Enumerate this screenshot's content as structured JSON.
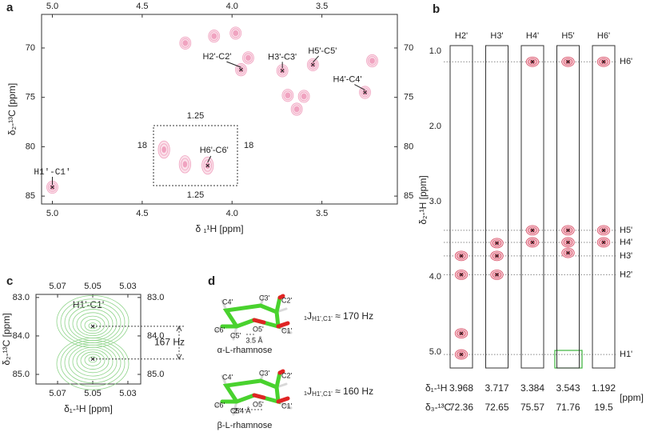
{
  "chart_data": [
    {
      "type": "contour",
      "panel": "a",
      "xlabel": "δ ₁¹H [ppm]",
      "ylabel": "δ₂-¹³C [ppm]",
      "color": "#f0a3c0",
      "xlim": [
        5.06,
        3.08
      ],
      "ylim": [
        66.6,
        85.8
      ],
      "xticks": [
        {
          "value": 5,
          "label": "5.0"
        },
        4.5,
        {
          "value": 4,
          "label": "4.0"
        },
        3.5
      ],
      "yticks": [
        70,
        75,
        80,
        85
      ],
      "peaks": [
        {
          "label": "H1'-C1'",
          "x": 5.0,
          "y": 84.1
        },
        {
          "label": "H2'-C2'",
          "x": 3.95,
          "y": 72.2
        },
        {
          "label": "H3'-C3'",
          "x": 3.72,
          "y": 72.3
        },
        {
          "label": "H5'-C5'",
          "x": 3.55,
          "y": 71.7
        },
        {
          "label": "H4'-C4'",
          "x": 3.26,
          "y": 74.5
        },
        {
          "x": 4.26,
          "y": 69.5
        },
        {
          "x": 4.1,
          "y": 68.8
        },
        {
          "x": 3.98,
          "y": 68.5
        },
        {
          "x": 3.91,
          "y": 71.0
        },
        {
          "x": 3.69,
          "y": 74.8
        },
        {
          "x": 3.6,
          "y": 74.9
        },
        {
          "x": 3.22,
          "y": 71.3
        },
        {
          "x": 3.64,
          "y": 76.2
        }
      ],
      "inset": {
        "xlim": [
          1.45,
          1.05
        ],
        "ylim": [
          16.5,
          21
        ],
        "xticks": [
          1.25
        ],
        "yticks": [
          18
        ],
        "peaks": [
          {
            "label": "H6'-C6'",
            "x": 1.192,
            "y": 19.5
          },
          {
            "x": 1.4,
            "y": 18.3
          },
          {
            "x": 1.3,
            "y": 19.4
          }
        ]
      }
    },
    {
      "type": "strips",
      "panel": "b",
      "ylabel": "δ₂-¹H [ppm]",
      "color": "#d9556b",
      "ylim": [
        0.925,
        5.21
      ],
      "yticks": [
        {
          "value": 1,
          "label": "1.0"
        },
        {
          "value": 2,
          "label": "2.0"
        },
        {
          "value": 3,
          "label": "3.0"
        },
        {
          "value": 4,
          "label": "4.0"
        },
        {
          "value": 5,
          "label": "5.0"
        }
      ],
      "strips": [
        {
          "name": "H2'",
          "peaks": [
            3.72,
            3.97,
            4.75,
            5.03
          ]
        },
        {
          "name": "H3'",
          "peaks": [
            3.55,
            3.72,
            3.97
          ]
        },
        {
          "name": "H4'",
          "peaks": [
            1.14,
            3.38,
            3.54
          ]
        },
        {
          "name": "H5'",
          "peaks": [
            1.14,
            3.38,
            3.54,
            3.68
          ]
        },
        {
          "name": "H6'",
          "peaks": [
            1.14,
            3.38,
            3.54
          ]
        }
      ],
      "guides": [
        {
          "label": "H6'",
          "value": 1.14
        },
        {
          "label": "H5'",
          "value": 3.38
        },
        {
          "label": "H4'",
          "value": 3.54
        },
        {
          "label": "H3'",
          "value": 3.72
        },
        {
          "label": "H2'",
          "value": 3.97
        },
        {
          "label": "H1'",
          "value": 5.03
        }
      ],
      "table": {
        "rows": [
          {
            "label": "δ₁-¹H",
            "values": [
              3.968,
              3.717,
              3.384,
              3.543,
              1.192
            ]
          },
          {
            "label": "δ₃-¹³C",
            "values": [
              72.36,
              72.65,
              75.57,
              71.76,
              19.5
            ]
          }
        ],
        "unit": "[ppm]"
      }
    },
    {
      "type": "contour",
      "panel": "c",
      "title": "H1'-C1'",
      "xlabel": "δ₁-¹H [ppm]",
      "ylabel": "δ₂-¹³C [ppm]",
      "color": "#8fd48a",
      "xlim": [
        5.0823,
        5.0227
      ],
      "ylim": [
        82.92,
        85.25
      ],
      "xticks": [
        5.07,
        5.05,
        5.03
      ],
      "yticks": [
        {
          "value": 83,
          "label": "83.0"
        },
        {
          "value": 84,
          "label": "84.0"
        },
        {
          "value": 85,
          "label": "85.0"
        }
      ],
      "peaks": [
        {
          "x": 5.05,
          "y": 83.75
        },
        {
          "x": 5.05,
          "y": 84.6
        }
      ],
      "annotation": "167 Hz"
    }
  ],
  "panel_d": {
    "label": "d",
    "molecules": [
      {
        "name": "α-L-rhamnose",
        "j": "₁J",
        "j_sub": "H1',C1'",
        "j_value": " ≈ 170  Hz",
        "distance": "3.5 Å",
        "atoms": [
          "C4'",
          "C3'",
          "C2'",
          "C6'",
          "C5'",
          "O5'",
          "C1'"
        ]
      },
      {
        "name": "β-L-rhamnose",
        "j": "₁J",
        "j_sub": "H1',C1'",
        "j_value": " ≈ 160  Hz",
        "distance": "2.4 Å",
        "atoms": [
          "C4'",
          "C3'",
          "C2'",
          "C6'",
          "C5'",
          "O5'",
          "C1'"
        ]
      }
    ]
  }
}
